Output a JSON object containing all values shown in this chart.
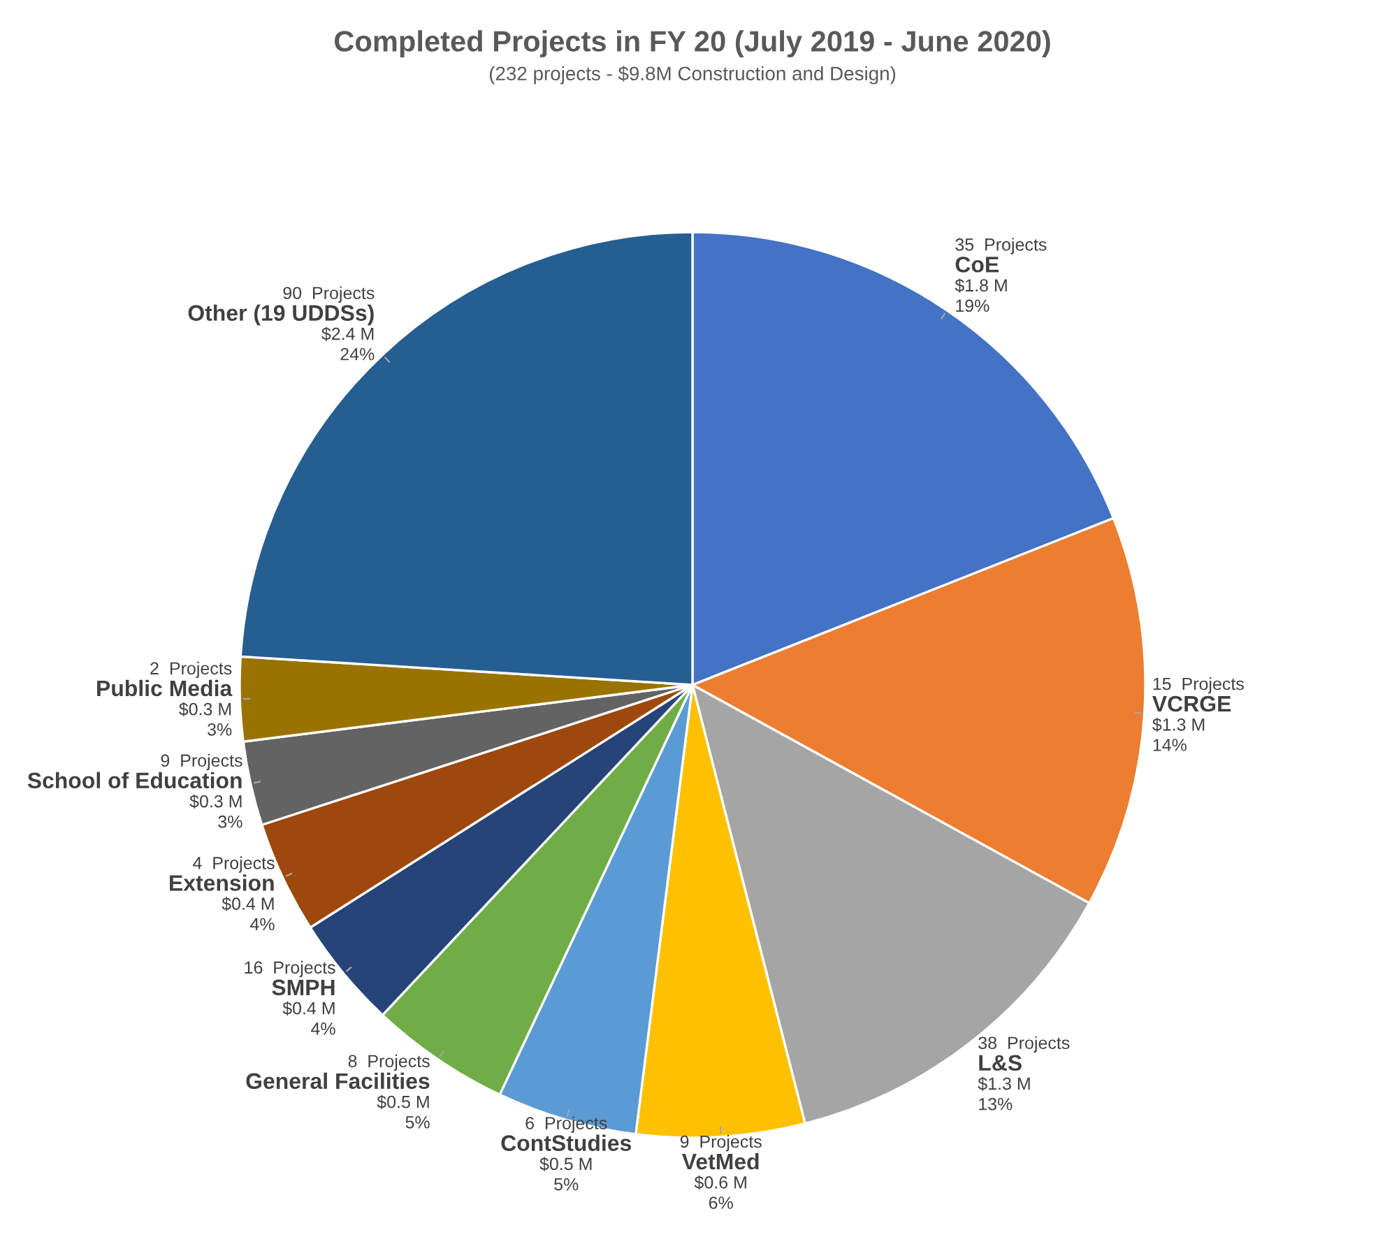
{
  "chart_data": {
    "type": "pie",
    "title": "Completed Projects in FY 20 (July 2019 - June 2020)",
    "subtitle": "(232 projects - $9.8M Construction and Design)",
    "categories": [
      "CoE",
      "VCRGE",
      "L&S",
      "VetMed",
      "ContStudies",
      "General Facilities",
      "SMPH",
      "Extension",
      "School of Education",
      "Public Media",
      "Other (19 UDDSs)"
    ],
    "values": [
      19,
      14,
      13,
      6,
      5,
      5,
      4,
      4,
      3,
      3,
      24
    ],
    "colors": [
      "#4472c4",
      "#ed7d31",
      "#a5a5a5",
      "#ffc000",
      "#5b9bd5",
      "#70ad47",
      "#264478",
      "#9e480e",
      "#636363",
      "#997300",
      "#255e91"
    ],
    "value_labels": [
      "19%",
      "14%",
      "13%",
      "6%",
      "5%",
      "5%",
      "4%",
      "4%",
      "3%",
      "3%",
      "24%"
    ],
    "annotations": [
      "35  Projects",
      "$1.8 M",
      "15  Projects",
      "$1.3 M",
      "38  Projects",
      "$1.3 M",
      "9  Projects",
      "$0.6 M",
      "6  Projects",
      "$0.5 M",
      "8  Projects",
      "$0.5 M",
      "16  Projects",
      "$0.4 M",
      "4  Projects",
      "$0.4 M",
      "9  Projects",
      "$0.3 M",
      "2  Projects",
      "$0.3 M",
      "90  Projects",
      "$2.4 M"
    ],
    "legend": false
  }
}
